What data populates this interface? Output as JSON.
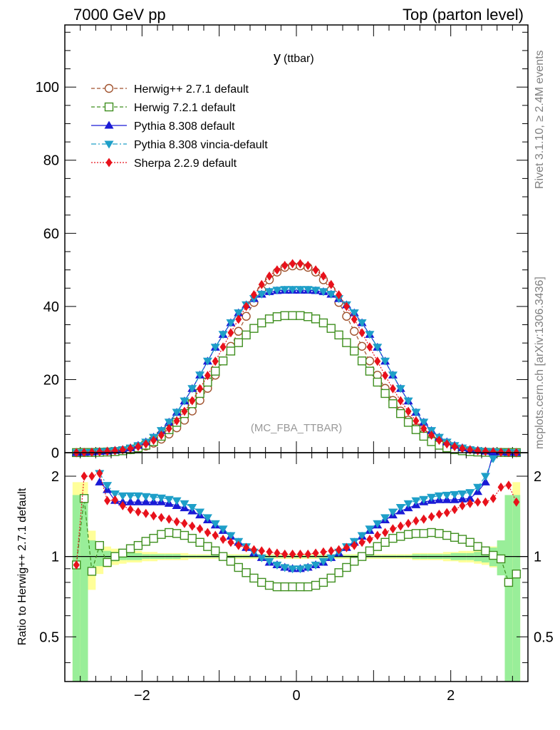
{
  "header": {
    "left": "7000 GeV pp",
    "right": "Top (parton level)",
    "side_top": "Rivet 3.1.10, ≥ 2.4M events",
    "side_bottom": "mcplots.cern.ch [arXiv:1306.3436]"
  },
  "chart_data": [
    {
      "type": "line",
      "title": "y",
      "title_sub": "(ttbar)",
      "watermark": "(MC_FBA_TTBAR)",
      "xlim": [
        -3.0,
        3.0
      ],
      "ylim": [
        0,
        117
      ],
      "yticks": [
        "0",
        "20",
        "40",
        "60",
        "80",
        "100"
      ],
      "legend_position": "top-left",
      "x": [
        -2.85,
        -2.75,
        -2.65,
        -2.55,
        -2.45,
        -2.35,
        -2.25,
        -2.15,
        -2.05,
        -1.95,
        -1.85,
        -1.75,
        -1.65,
        -1.55,
        -1.45,
        -1.35,
        -1.25,
        -1.15,
        -1.05,
        -0.95,
        -0.85,
        -0.75,
        -0.65,
        -0.55,
        -0.45,
        -0.35,
        -0.25,
        -0.15,
        -0.05,
        0.05,
        0.15,
        0.25,
        0.35,
        0.45,
        0.55,
        0.65,
        0.75,
        0.85,
        0.95,
        1.05,
        1.15,
        1.25,
        1.35,
        1.45,
        1.55,
        1.65,
        1.75,
        1.85,
        1.95,
        2.05,
        2.15,
        2.25,
        2.35,
        2.45,
        2.55,
        2.65,
        2.75,
        2.85
      ],
      "series": [
        {
          "name": "Herwig++ 2.7.1 default",
          "color": "#a0522d",
          "marker": "open-circle",
          "dash": "5,3",
          "values": [
            0.02,
            0.04,
            0.07,
            0.12,
            0.2,
            0.33,
            0.52,
            0.8,
            1.2,
            1.8,
            2.6,
            3.7,
            5.1,
            6.8,
            8.9,
            11.4,
            14.3,
            17.6,
            21.2,
            25.1,
            29.1,
            33.2,
            37.3,
            41.1,
            44.5,
            47.3,
            49.4,
            50.7,
            51.1,
            51.1,
            50.7,
            49.4,
            47.3,
            44.5,
            41.1,
            37.3,
            33.2,
            29.1,
            25.1,
            21.2,
            17.6,
            14.3,
            11.4,
            8.9,
            6.8,
            5.1,
            3.7,
            2.6,
            1.8,
            1.2,
            0.8,
            0.52,
            0.33,
            0.2,
            0.12,
            0.07,
            0.04,
            0.02
          ]
        },
        {
          "name": "Herwig 7.2.1 default",
          "color": "#3f8f1f",
          "marker": "open-square",
          "dash": "5,3",
          "values": [
            0.02,
            0.06,
            0.06,
            0.12,
            0.19,
            0.32,
            0.53,
            0.85,
            1.33,
            2.05,
            3.03,
            4.5,
            6.3,
            8.3,
            10.7,
            13.4,
            16.2,
            19.3,
            22.3,
            25.1,
            27.8,
            30.1,
            32.2,
            34.0,
            35.5,
            36.6,
            37.2,
            37.5,
            37.5,
            37.5,
            37.2,
            36.6,
            35.5,
            34.0,
            32.2,
            30.1,
            27.8,
            25.1,
            22.3,
            19.3,
            16.2,
            13.4,
            10.7,
            8.3,
            6.3,
            4.5,
            3.03,
            2.05,
            1.33,
            0.85,
            0.53,
            0.32,
            0.19,
            0.12,
            0.06,
            0.06,
            0.05,
            0.02
          ]
        },
        {
          "name": "Pythia 8.308 default",
          "color": "#1a1ad6",
          "marker": "triangle-up",
          "dash": "",
          "values": [
            0.02,
            0.07,
            0.12,
            0.3,
            0.38,
            0.6,
            0.84,
            1.3,
            1.95,
            2.9,
            4.2,
            6.0,
            8.3,
            11.0,
            14.1,
            17.5,
            21.2,
            25.0,
            28.8,
            32.3,
            35.5,
            38.2,
            40.4,
            42.1,
            43.3,
            44.0,
            44.3,
            44.4,
            44.4,
            44.4,
            44.4,
            44.3,
            44.0,
            43.3,
            42.1,
            40.4,
            38.2,
            35.5,
            32.3,
            28.8,
            25.0,
            21.2,
            17.5,
            14.1,
            11.0,
            8.3,
            6.0,
            4.2,
            2.9,
            1.95,
            1.3,
            0.84,
            0.6,
            0.38,
            0.3,
            0.12,
            0.07,
            0.02
          ]
        },
        {
          "name": "Pythia 8.308 vincia-default",
          "color": "#1e9fc8",
          "marker": "triangle-down",
          "dash": "7,3,2,3",
          "values": [
            0.02,
            0.07,
            0.12,
            0.3,
            0.38,
            0.6,
            0.87,
            1.33,
            2.0,
            2.95,
            4.25,
            6.1,
            8.4,
            11.1,
            14.2,
            17.6,
            21.3,
            25.1,
            28.9,
            32.4,
            35.6,
            38.3,
            40.5,
            42.2,
            43.4,
            44.1,
            44.5,
            44.7,
            44.7,
            44.7,
            44.7,
            44.5,
            44.1,
            43.4,
            42.2,
            40.5,
            38.3,
            35.6,
            32.4,
            28.9,
            25.1,
            21.3,
            17.6,
            14.2,
            11.1,
            8.4,
            6.1,
            4.25,
            2.95,
            2.0,
            1.33,
            0.87,
            0.6,
            0.38,
            0.3,
            0.12,
            0.07,
            0.02
          ]
        },
        {
          "name": "Sherpa 2.2.9 default",
          "color": "#e8111b",
          "marker": "diamond",
          "dash": "2,2",
          "values": [
            0.02,
            0.08,
            0.14,
            0.25,
            0.36,
            0.53,
            0.77,
            1.14,
            1.66,
            2.4,
            3.4,
            4.8,
            6.6,
            8.7,
            11.3,
            14.2,
            17.5,
            21.1,
            25.0,
            28.9,
            32.8,
            36.5,
            40.0,
            43.2,
            46.0,
            48.3,
            50.0,
            51.2,
            51.7,
            51.7,
            51.2,
            50.0,
            48.3,
            46.0,
            43.2,
            40.0,
            36.5,
            32.8,
            28.9,
            25.0,
            21.1,
            17.5,
            14.2,
            11.3,
            8.7,
            6.6,
            4.8,
            3.4,
            2.4,
            1.66,
            1.14,
            0.77,
            0.53,
            0.36,
            0.25,
            0.14,
            0.08,
            0.02
          ]
        }
      ]
    },
    {
      "type": "line",
      "ylabel": "Ratio to Herwig++ 2.7.1 default",
      "yscale": "log",
      "ylim": [
        0.34,
        2.45
      ],
      "yticks": [
        "0.5",
        "1",
        "2"
      ],
      "xticks": [
        "−2",
        "0",
        "2"
      ],
      "x": [
        -2.85,
        -2.75,
        -2.65,
        -2.55,
        -2.45,
        -2.35,
        -2.25,
        -2.15,
        -2.05,
        -1.95,
        -1.85,
        -1.75,
        -1.65,
        -1.55,
        -1.45,
        -1.35,
        -1.25,
        -1.15,
        -1.05,
        -0.95,
        -0.85,
        -0.75,
        -0.65,
        -0.55,
        -0.45,
        -0.35,
        -0.25,
        -0.15,
        -0.05,
        0.05,
        0.15,
        0.25,
        0.35,
        0.45,
        0.55,
        0.65,
        0.75,
        0.85,
        0.95,
        1.05,
        1.15,
        1.25,
        1.35,
        1.45,
        1.55,
        1.65,
        1.75,
        1.85,
        1.95,
        2.05,
        2.15,
        2.25,
        2.35,
        2.45,
        2.55,
        2.65,
        2.75,
        2.85
      ],
      "uncertainty_bands": {
        "yellow_half_width": [
          0.9,
          0.9,
          0.25,
          0.14,
          0.09,
          0.07,
          0.06,
          0.05,
          0.05,
          0.04,
          0.04,
          0.03,
          0.03,
          0.03,
          0.03,
          0.02,
          0.02,
          0.02,
          0.02,
          0.02,
          0.02,
          0.02,
          0.02,
          0.02,
          0.02,
          0.02,
          0.02,
          0.02,
          0.02,
          0.02,
          0.02,
          0.02,
          0.02,
          0.02,
          0.02,
          0.02,
          0.02,
          0.02,
          0.02,
          0.02,
          0.02,
          0.02,
          0.02,
          0.02,
          0.03,
          0.03,
          0.03,
          0.03,
          0.04,
          0.04,
          0.05,
          0.05,
          0.06,
          0.07,
          0.09,
          0.14,
          0.25,
          0.9
        ],
        "green_half_width": [
          0.7,
          0.7,
          0.15,
          0.08,
          0.05,
          0.04,
          0.03,
          0.03,
          0.03,
          0.02,
          0.02,
          0.02,
          0.02,
          0.02,
          0.01,
          0.01,
          0.01,
          0.01,
          0.01,
          0.01,
          0.01,
          0.01,
          0.01,
          0.01,
          0.01,
          0.01,
          0.01,
          0.01,
          0.01,
          0.01,
          0.01,
          0.01,
          0.01,
          0.01,
          0.01,
          0.01,
          0.01,
          0.01,
          0.01,
          0.01,
          0.01,
          0.01,
          0.01,
          0.01,
          0.02,
          0.02,
          0.02,
          0.02,
          0.02,
          0.03,
          0.03,
          0.03,
          0.04,
          0.05,
          0.08,
          0.15,
          0.7,
          0.7
        ]
      },
      "series": [
        {
          "name": "Herwig 7.2.1 default",
          "color": "#3f8f1f",
          "marker": "open-square",
          "dash": "5,3",
          "values": [
            0.93,
            1.65,
            0.88,
            1.1,
            0.95,
            1.0,
            1.03,
            1.07,
            1.1,
            1.14,
            1.17,
            1.21,
            1.23,
            1.22,
            1.2,
            1.17,
            1.13,
            1.09,
            1.05,
            1.0,
            0.96,
            0.91,
            0.87,
            0.83,
            0.8,
            0.78,
            0.77,
            0.77,
            0.77,
            0.77,
            0.77,
            0.78,
            0.8,
            0.83,
            0.87,
            0.91,
            0.96,
            1.0,
            1.05,
            1.09,
            1.13,
            1.17,
            1.19,
            1.21,
            1.22,
            1.22,
            1.23,
            1.22,
            1.2,
            1.18,
            1.16,
            1.13,
            1.09,
            1.05,
            1.01,
            0.98,
            0.8,
            0.86
          ]
        },
        {
          "name": "Pythia 8.308 default",
          "color": "#1a1ad6",
          "marker": "triangle-up",
          "dash": "",
          "values": [
            null,
            null,
            null,
            1.9,
            1.78,
            1.62,
            1.6,
            1.6,
            1.6,
            1.6,
            1.6,
            1.6,
            1.58,
            1.55,
            1.52,
            1.48,
            1.43,
            1.37,
            1.31,
            1.25,
            1.19,
            1.13,
            1.08,
            1.03,
            0.99,
            0.95,
            0.93,
            0.91,
            0.9,
            0.9,
            0.91,
            0.93,
            0.95,
            0.99,
            1.03,
            1.08,
            1.13,
            1.19,
            1.25,
            1.31,
            1.37,
            1.43,
            1.48,
            1.52,
            1.56,
            1.6,
            1.62,
            1.63,
            1.63,
            1.63,
            1.64,
            1.65,
            1.75,
            1.9,
            2.45,
            null,
            null,
            null
          ]
        },
        {
          "name": "Pythia 8.308 vincia-default",
          "color": "#1e9fc8",
          "marker": "triangle-down",
          "dash": "7,3,2,3",
          "values": [
            null,
            null,
            null,
            2.05,
            1.85,
            1.72,
            1.69,
            1.69,
            1.69,
            1.68,
            1.67,
            1.66,
            1.64,
            1.62,
            1.58,
            1.53,
            1.47,
            1.4,
            1.33,
            1.27,
            1.2,
            1.14,
            1.09,
            1.04,
            0.99,
            0.96,
            0.93,
            0.91,
            0.9,
            0.9,
            0.91,
            0.93,
            0.96,
            0.99,
            1.04,
            1.09,
            1.14,
            1.2,
            1.27,
            1.33,
            1.4,
            1.47,
            1.53,
            1.58,
            1.62,
            1.64,
            1.67,
            1.69,
            1.7,
            1.71,
            1.72,
            1.74,
            1.82,
            2.0,
            2.33,
            null,
            null,
            null
          ]
        },
        {
          "name": "Sherpa 2.2.9 default",
          "color": "#e8111b",
          "marker": "diamond",
          "dash": "2,2",
          "values": [
            0.93,
            2.0,
            2.0,
            2.05,
            1.62,
            1.63,
            1.55,
            1.5,
            1.47,
            1.45,
            1.42,
            1.4,
            1.38,
            1.35,
            1.33,
            1.3,
            1.27,
            1.23,
            1.2,
            1.16,
            1.13,
            1.1,
            1.08,
            1.06,
            1.05,
            1.04,
            1.03,
            1.02,
            1.02,
            1.02,
            1.02,
            1.03,
            1.04,
            1.05,
            1.06,
            1.08,
            1.1,
            1.13,
            1.16,
            1.2,
            1.23,
            1.27,
            1.3,
            1.33,
            1.36,
            1.38,
            1.41,
            1.44,
            1.46,
            1.5,
            1.55,
            1.58,
            1.6,
            1.6,
            1.65,
            1.82,
            1.85,
            1.6
          ]
        }
      ]
    }
  ]
}
